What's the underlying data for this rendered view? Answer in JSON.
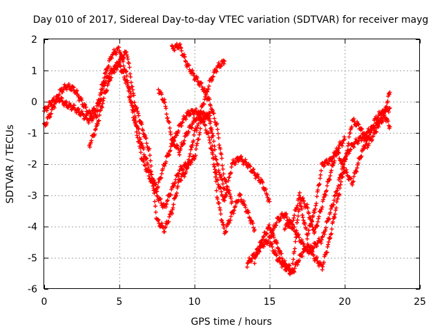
{
  "chart_data": {
    "type": "scatter",
    "title": "Day 010 of 2017, Sidereal Day-to-day VTEC variation (SDTVAR) for receiver mayg",
    "xlabel": "GPS time / hours",
    "ylabel": "SDTVAR / TECUs",
    "xlim": [
      0,
      25
    ],
    "ylim": [
      -6,
      2
    ],
    "x_ticks": [
      "0",
      "5",
      "10",
      "15",
      "20",
      "25"
    ],
    "y_ticks": [
      "2",
      "1",
      "0",
      "-1",
      "-2",
      "-3",
      "-4",
      "-5",
      "-6"
    ],
    "grid": true,
    "marker": "+",
    "color": "#ff0000",
    "series": [
      {
        "x": [
          0.0,
          0.5,
          1.0,
          1.5,
          2.0,
          2.5,
          3.0,
          3.5,
          4.0,
          4.5,
          5.0,
          5.5,
          6.0,
          6.5,
          7.0,
          7.5,
          8.0,
          8.5,
          9.0,
          9.5,
          10.0,
          10.5,
          11.0,
          11.5,
          12.0
        ],
        "y": [
          -0.3,
          0.0,
          0.1,
          -0.1,
          -0.2,
          -0.4,
          -0.6,
          -0.4,
          0.6,
          1.0,
          1.2,
          0.6,
          -0.6,
          -1.8,
          -2.4,
          -3.0,
          -3.4,
          -2.8,
          -2.2,
          -2.0,
          -1.8,
          -0.6,
          -0.4,
          -2.0,
          -2.8
        ]
      },
      {
        "x": [
          0.0,
          0.5,
          1.0,
          1.5,
          2.0,
          2.5,
          3.0,
          3.5,
          4.0,
          4.5,
          5.0,
          5.5,
          6.0,
          6.5,
          7.0,
          7.5,
          8.0,
          8.5,
          9.0,
          9.5,
          10.0,
          10.5,
          11.0,
          11.5,
          12.0,
          12.5,
          13.0,
          13.5,
          14.0,
          14.5,
          15.0
        ],
        "y": [
          -0.8,
          -0.3,
          0.3,
          0.5,
          0.4,
          0.0,
          -0.4,
          -0.2,
          0.8,
          1.5,
          1.7,
          0.8,
          -0.4,
          -1.4,
          -2.2,
          -2.8,
          -2.0,
          -1.4,
          -0.8,
          -0.4,
          -0.3,
          -0.5,
          -1.2,
          -2.5,
          -3.2,
          -2.0,
          -1.8,
          -2.0,
          -2.3,
          -2.6,
          -3.2
        ]
      },
      {
        "x": [
          3.0,
          3.5,
          4.0,
          4.5,
          5.0,
          5.5,
          6.0,
          6.5,
          7.0,
          7.5,
          8.0,
          8.5,
          9.0,
          9.5,
          10.0,
          10.5,
          11.0,
          11.5,
          12.0,
          12.5,
          13.0,
          13.5,
          14.0
        ],
        "y": [
          -1.4,
          -0.8,
          0.2,
          0.9,
          1.3,
          1.6,
          0.0,
          -0.8,
          -1.6,
          -3.8,
          -4.1,
          -3.5,
          -2.5,
          -2.2,
          -1.0,
          -0.4,
          -0.5,
          -3.0,
          -4.2,
          -3.6,
          -3.0,
          -3.5,
          -4.1
        ]
      },
      {
        "x": [
          7.6,
          8.0,
          8.5,
          9.0,
          9.5,
          10.0,
          10.5,
          11.0,
          11.5,
          12.0
        ],
        "y": [
          0.4,
          0.0,
          -1.2,
          -1.6,
          -1.0,
          -0.6,
          -0.2,
          0.6,
          1.1,
          1.3
        ]
      },
      {
        "x": [
          8.5,
          9.0,
          9.5,
          10.0,
          10.5,
          11.0,
          11.5,
          12.0,
          12.5
        ],
        "y": [
          1.7,
          1.8,
          1.2,
          0.8,
          0.5,
          0.0,
          -0.8,
          -2.5,
          -3.2
        ]
      },
      {
        "x": [
          13.5,
          14.0,
          14.5,
          15.0,
          15.5,
          16.0,
          16.5,
          17.0,
          17.5,
          18.0,
          18.5,
          19.0,
          19.5,
          20.0,
          20.5,
          21.0,
          21.5,
          22.0,
          22.5,
          23.0
        ],
        "y": [
          -5.2,
          -4.9,
          -4.6,
          -4.4,
          -3.8,
          -3.6,
          -4.0,
          -4.4,
          -4.8,
          -4.6,
          -4.4,
          -3.6,
          -2.8,
          -1.8,
          -1.4,
          -1.2,
          -1.0,
          -0.8,
          -0.6,
          0.3
        ]
      },
      {
        "x": [
          14.0,
          14.5,
          15.0,
          15.5,
          16.0,
          16.5,
          17.0,
          17.5,
          18.0,
          18.5,
          19.0,
          19.5,
          20.0,
          20.5,
          21.0,
          21.5,
          22.0,
          22.5,
          23.0
        ],
        "y": [
          -5.1,
          -4.4,
          -4.0,
          -4.6,
          -5.2,
          -5.4,
          -3.2,
          -4.3,
          -3.5,
          -2.0,
          -1.9,
          -1.6,
          -2.2,
          -2.6,
          -1.8,
          -1.2,
          -0.6,
          -0.3,
          -0.8
        ]
      },
      {
        "x": [
          15.0,
          15.5,
          16.0,
          16.5,
          17.0,
          17.5,
          18.0,
          18.5,
          19.0,
          19.5,
          20.0,
          20.5,
          21.0,
          21.5,
          22.0,
          22.5,
          23.0
        ],
        "y": [
          -4.5,
          -5.0,
          -5.3,
          -5.5,
          -5.0,
          -4.6,
          -5.0,
          -5.3,
          -4.4,
          -3.2,
          -2.0,
          -0.6,
          -0.8,
          -1.4,
          -1.0,
          -0.4,
          -0.2
        ]
      },
      {
        "x": [
          16.0,
          16.5,
          17.0,
          17.5,
          18.0,
          18.5,
          19.0,
          19.5,
          20.0
        ],
        "y": [
          -4.0,
          -3.9,
          -3.0,
          -3.4,
          -4.2,
          -3.3,
          -2.4,
          -1.5,
          -1.2
        ]
      }
    ]
  }
}
